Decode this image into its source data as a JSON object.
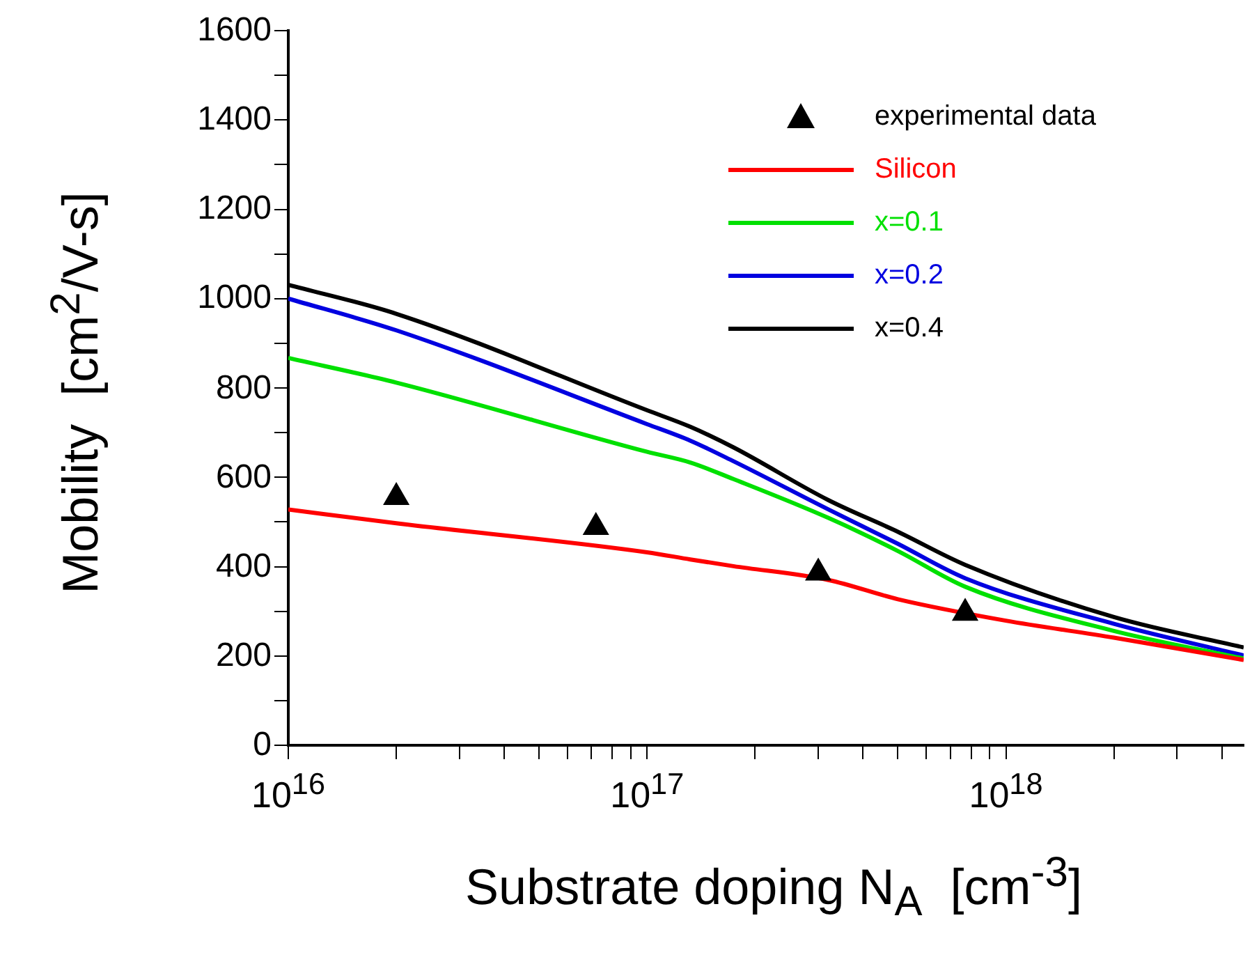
{
  "chart_data": {
    "type": "line",
    "xlabel": "Substrate doping N$_{A}$  [cm$^{-3}$]",
    "ylabel": "Mobility  [cm$^{2}$/V-s]",
    "log": "x",
    "xlim": [
      1e+16,
      4.6e+18
    ],
    "xticks": [
      {
        "value": 1e+16,
        "label": "10$^{16}$"
      },
      {
        "value": 2e+16,
        "label": null
      },
      {
        "value": 3e+16,
        "label": null
      },
      {
        "value": 4e+16,
        "label": null
      },
      {
        "value": 5e+16,
        "label": null
      },
      {
        "value": 6e+16,
        "label": null
      },
      {
        "value": 7e+16,
        "label": null
      },
      {
        "value": 8e+16,
        "label": null
      },
      {
        "value": 9e+16,
        "label": null
      },
      {
        "value": 1e+17,
        "label": "10$^{17}$"
      },
      {
        "value": 2e+17,
        "label": null
      },
      {
        "value": 3e+17,
        "label": null
      },
      {
        "value": 4e+17,
        "label": null
      },
      {
        "value": 5e+17,
        "label": null
      },
      {
        "value": 6e+17,
        "label": null
      },
      {
        "value": 7e+17,
        "label": null
      },
      {
        "value": 8e+17,
        "label": null
      },
      {
        "value": 9e+17,
        "label": null
      },
      {
        "value": 1e+18,
        "label": "10$^{18}$"
      },
      {
        "value": 2e+18,
        "label": null
      },
      {
        "value": 3e+18,
        "label": null
      },
      {
        "value": 4e+18,
        "label": null
      }
    ],
    "ylim": [
      0,
      1600
    ],
    "yticks": [
      0,
      {
        "value": 100,
        "label": null
      },
      200,
      {
        "value": 300,
        "label": null
      },
      400,
      {
        "value": 500,
        "label": null
      },
      600,
      {
        "value": 700,
        "label": null
      },
      800,
      {
        "value": 900,
        "label": null
      },
      1000,
      {
        "value": 1100,
        "label": null
      },
      1200,
      {
        "value": 1300,
        "label": null
      },
      1400,
      {
        "value": 1500,
        "label": null
      },
      1600
    ],
    "grid": false,
    "legend": "top right",
    "series": [
      {
        "name": "experimental data",
        "type": "scatter",
        "marker": "triangle",
        "color": "#000000",
        "x": [
          2e+16,
          7.2e+16,
          3e+17,
          7.7e+17
        ],
        "values": [
          555,
          488,
          386,
          296
        ]
      },
      {
        "name": "Silicon",
        "type": "line",
        "marker": "none",
        "color": "#ff0000",
        "x": [
          1e+16,
          2e+16,
          1e+17,
          1.32e+17,
          1.74e+17,
          3.2e+17,
          5e+17,
          1e+18,
          2e+18,
          4.6e+18
        ],
        "values": [
          528,
          497,
          432,
          416,
          401,
          370,
          327,
          279,
          241,
          191
        ]
      },
      {
        "name": "x=0.1",
        "type": "line",
        "marker": "none",
        "color": "#00e000",
        "x": [
          1e+16,
          2e+16,
          1e+17,
          1.32e+17,
          1.74e+17,
          3.2e+17,
          5e+17,
          7.7e+17,
          2e+18,
          4.6e+18
        ],
        "values": [
          867,
          812,
          657,
          633,
          596,
          509,
          435,
          355,
          256,
          194
        ]
      },
      {
        "name": "x=0.2",
        "type": "line",
        "marker": "none",
        "color": "#0000e0",
        "x": [
          1e+16,
          2e+16,
          1e+17,
          1.32e+17,
          1.74e+17,
          3.2e+17,
          5e+17,
          7.7e+17,
          2e+18,
          4.6e+18
        ],
        "values": [
          1000,
          929,
          719,
          682,
          636,
          528,
          451,
          374,
          272,
          201
        ]
      },
      {
        "name": "x=0.4",
        "type": "line",
        "marker": "none",
        "color": "#000000",
        "x": [
          1e+16,
          2e+16,
          1e+17,
          1.32e+17,
          1.74e+17,
          3.2e+17,
          5e+17,
          7.7e+17,
          2e+18,
          4.6e+18
        ],
        "values": [
          1031,
          966,
          750,
          713,
          667,
          549,
          478,
          404,
          287,
          219
        ]
      }
    ]
  }
}
